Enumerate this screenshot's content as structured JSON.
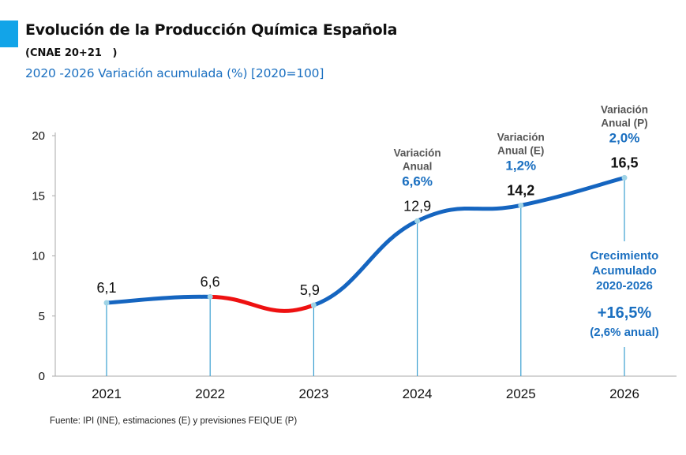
{
  "header": {
    "title": "Evolución de la Producción Química Española",
    "subtitle_code": "(CNAE 20+21   )",
    "subtitle_range": "2020 -2026 Variación acumulada (%) [2020=100]",
    "accent_color": "#12a4e8"
  },
  "footer": {
    "source": "Fuente: IPI (INE), estimaciones (E) y previsiones FEIQUE (P)"
  },
  "chart_data": {
    "type": "line",
    "title": "Evolución de la Producción Química Española",
    "subtitle": "2020 -2026 Variación acumulada (%) [2020=100]",
    "xlabel": "",
    "ylabel": "",
    "categories": [
      "2021",
      "2022",
      "2023",
      "2024",
      "2025",
      "2026"
    ],
    "series": [
      {
        "name": "Variación acumulada (%)",
        "values": [
          6.1,
          6.6,
          5.9,
          12.9,
          14.2,
          16.5
        ],
        "value_labels": [
          "6,1",
          "6,6",
          "5,9",
          "12,9",
          "14,2",
          "16,5"
        ],
        "color": "#1565c0",
        "decline_color": "#ee1111",
        "marker_color": "#9fd3e6"
      }
    ],
    "ylim": [
      0,
      20
    ],
    "yticks": [
      0,
      5,
      10,
      15,
      20
    ],
    "ytick_labels": [
      "0",
      "5",
      "10",
      "15",
      "20"
    ],
    "grid": false,
    "drop_lines": true,
    "annotations": [
      {
        "category": "2024",
        "lines": [
          "Variación",
          "Anual"
        ],
        "value": "6,6%"
      },
      {
        "category": "2025",
        "lines": [
          "Variación",
          "Anual (E)"
        ],
        "value": "1,2%"
      },
      {
        "category": "2026",
        "lines": [
          "Variación",
          "Anual (P)"
        ],
        "value": "2,0%"
      }
    ],
    "growth_box": {
      "category": "2026",
      "lines": [
        "Crecimiento",
        "Acumulado",
        "2020-2026"
      ],
      "value": "+16,5%",
      "note": "(2,6% anual)"
    },
    "colors": {
      "line": "#1565c0",
      "decline": "#ee1111",
      "marker": "#9fd3e6",
      "drop_line": "#3a9fd0",
      "axis": "#aaaaaa",
      "annotation_gray": "#555555",
      "annotation_blue": "#1a6fc0"
    }
  }
}
